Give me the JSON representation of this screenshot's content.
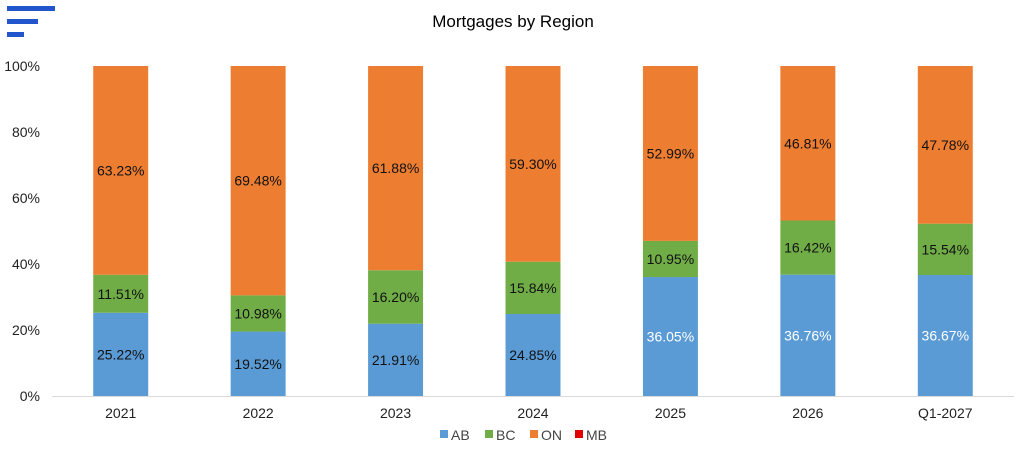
{
  "app_icon": "menu-bars-icon",
  "chart_data": {
    "type": "bar",
    "stacked": "percent",
    "title": "Mortgages by Region",
    "xlabel": "",
    "ylabel": "",
    "categories": [
      "2021",
      "2022",
      "2023",
      "2024",
      "2025",
      "2026",
      "Q1-2027"
    ],
    "series": [
      {
        "name": "AB",
        "color": "#5b9bd5",
        "values": [
          25.22,
          19.52,
          21.91,
          24.85,
          36.05,
          36.76,
          36.67
        ],
        "labels": [
          "25.22%",
          "19.52%",
          "21.91%",
          "24.85%",
          "36.05%",
          "36.76%",
          "36.67%"
        ]
      },
      {
        "name": "BC",
        "color": "#70ad47",
        "values": [
          11.51,
          10.98,
          16.2,
          15.84,
          10.95,
          16.42,
          15.54
        ],
        "labels": [
          "11.51%",
          "10.98%",
          "16.20%",
          "15.84%",
          "10.95%",
          "16.42%",
          "15.54%"
        ]
      },
      {
        "name": "ON",
        "color": "#ed7d31",
        "values": [
          63.23,
          69.48,
          61.88,
          59.3,
          52.99,
          46.81,
          47.78
        ],
        "labels": [
          "63.23%",
          "69.48%",
          "61.88%",
          "59.30%",
          "52.99%",
          "46.81%",
          "47.78%"
        ]
      },
      {
        "name": "MB",
        "color": "#e00000",
        "values": [
          0.04,
          0.02,
          0.01,
          0.01,
          0.01,
          0.01,
          0.01
        ],
        "labels": [
          "",
          "",
          "",
          "",
          "",
          "",
          ""
        ]
      }
    ],
    "yticks": [
      "0%",
      "20%",
      "40%",
      "60%",
      "80%",
      "100%"
    ],
    "ylim": [
      0,
      100
    ],
    "grid": false,
    "legend_position": "bottom"
  }
}
